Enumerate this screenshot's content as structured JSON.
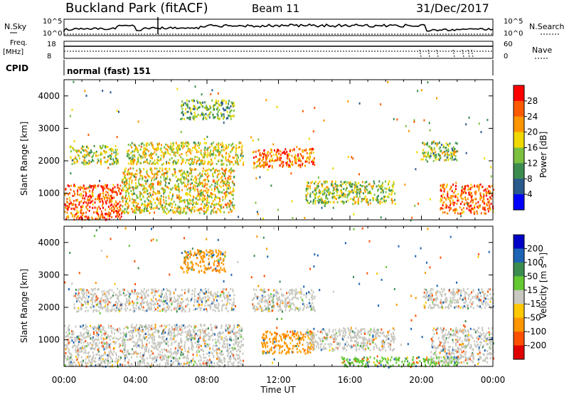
{
  "header": {
    "station": "Buckland Park (fitACF)",
    "beam": "Beam 11",
    "date": "31/Dec/2017"
  },
  "noise_panel": {
    "left_label": "N.Sky",
    "right_label": "N.Search",
    "tick_top_left": "10^5",
    "tick_bottom_left": "10^0",
    "tick_top_right": "10^5",
    "tick_bottom_right": "10^0"
  },
  "freq_panel": {
    "left_label_line1": "Freq.",
    "left_label_line2": "[MHz]",
    "right_label": "Nave",
    "tick_top_left": "18",
    "tick_bottom_left": "8",
    "tick_top_right": "60",
    "tick_bottom_right": "0"
  },
  "cpid": {
    "label": "CPID",
    "value": "normal (fast) 151"
  },
  "power_colorbar": {
    "label": "Power [dB]",
    "ticks": [
      "28",
      "24",
      "20",
      "16",
      "12",
      "8",
      "4"
    ],
    "colors": [
      "#ff0000",
      "#ff5a00",
      "#ff9600",
      "#f0d800",
      "#7cc040",
      "#3c8c50",
      "#2a5a8c",
      "#0000ff"
    ]
  },
  "velocity_colorbar": {
    "label": "Velocity [m s⁻¹]",
    "ticks": [
      "200",
      "100",
      "50",
      "15",
      "-15",
      "-50",
      "-100",
      "-200"
    ],
    "colors": [
      "#0000c8",
      "#1e64b4",
      "#3c8c50",
      "#64c832",
      "#c8c8c0",
      "#ffc800",
      "#ff9600",
      "#ff5000",
      "#e00000"
    ]
  },
  "axes": {
    "ylabel": "Slant Range [km]",
    "xlabel": "Time UT"
  },
  "chart_data": [
    {
      "type": "heatmap",
      "name": "Power",
      "ylabel": "Slant Range [km]",
      "x_ticks": [
        "00:00",
        "04:00",
        "08:00",
        "12:00",
        "16:00",
        "20:00",
        "00:00"
      ],
      "xlim_hours": [
        0,
        24
      ],
      "ylim_km": [
        180,
        4500
      ],
      "y_ticks": [
        1000,
        2000,
        3000,
        4000
      ],
      "colorbar_label": "Power [dB]",
      "colorbar_ticks": [
        28,
        24,
        20,
        16,
        12,
        8,
        4
      ],
      "regions": [
        {
          "t0": 0.0,
          "t1": 3.2,
          "r0": 200,
          "r1": 1300,
          "value": 26
        },
        {
          "t0": 0.3,
          "t1": 3.0,
          "r0": 1900,
          "r1": 2500,
          "value": 16
        },
        {
          "t0": 3.2,
          "t1": 9.5,
          "r0": 400,
          "r1": 1800,
          "value": 18
        },
        {
          "t0": 3.5,
          "t1": 10.0,
          "r0": 1900,
          "r1": 2600,
          "value": 17
        },
        {
          "t0": 6.5,
          "t1": 9.5,
          "r0": 3300,
          "r1": 3900,
          "value": 13
        },
        {
          "t0": 10.5,
          "t1": 14.0,
          "r0": 1800,
          "r1": 2400,
          "value": 24
        },
        {
          "t0": 13.5,
          "t1": 18.5,
          "r0": 700,
          "r1": 1400,
          "value": 15
        },
        {
          "t0": 20.0,
          "t1": 22.0,
          "r0": 2000,
          "r1": 2600,
          "value": 14
        },
        {
          "t0": 21.0,
          "t1": 24.0,
          "r0": 400,
          "r1": 1300,
          "value": 25
        }
      ]
    },
    {
      "type": "heatmap",
      "name": "Velocity",
      "ylabel": "Slant Range [km]",
      "x_ticks": [
        "00:00",
        "04:00",
        "08:00",
        "12:00",
        "16:00",
        "20:00",
        "00:00"
      ],
      "xlim_hours": [
        0,
        24
      ],
      "ylim_km": [
        180,
        4500
      ],
      "y_ticks": [
        1000,
        2000,
        3000,
        4000
      ],
      "colorbar_label": "Velocity [m s⁻¹]",
      "colorbar_ticks": [
        200,
        100,
        50,
        15,
        -15,
        -50,
        -100,
        -200
      ],
      "regions": [
        {
          "t0": 0.0,
          "t1": 10.0,
          "r0": 200,
          "r1": 1500,
          "value": 0
        },
        {
          "t0": 0.5,
          "t1": 9.5,
          "r0": 1900,
          "r1": 2600,
          "value": 0
        },
        {
          "t0": 6.5,
          "t1": 9.0,
          "r0": 3100,
          "r1": 3800,
          "value": -60
        },
        {
          "t0": 10.5,
          "t1": 14.0,
          "r0": 1900,
          "r1": 2600,
          "value": 0
        },
        {
          "t0": 11.0,
          "t1": 14.0,
          "r0": 600,
          "r1": 1300,
          "value": -80
        },
        {
          "t0": 13.5,
          "t1": 18.5,
          "r0": 700,
          "r1": 1400,
          "value": 0
        },
        {
          "t0": 15.5,
          "t1": 22.0,
          "r0": 200,
          "r1": 500,
          "value": 40
        },
        {
          "t0": 20.5,
          "t1": 24.0,
          "r0": 300,
          "r1": 1400,
          "value": 0
        },
        {
          "t0": 20.0,
          "t1": 24.0,
          "r0": 2000,
          "r1": 2600,
          "value": 0
        }
      ]
    }
  ]
}
